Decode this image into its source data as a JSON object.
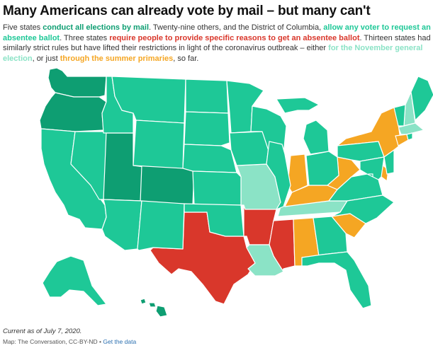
{
  "title": "Many Americans can already vote by mail – but many can't",
  "description": {
    "p1": "Five states ",
    "h1": "conduct all elections by mail",
    "p2": ". Twenty-nine others, and the District of Columbia, ",
    "h2": "allow any voter to request an absentee ballot",
    "p3": ". Three states ",
    "h3": "require people to provide specific reasons to get an absentee ballot",
    "p4": ". Thirteen states had similarly strict rules but have lifted their restrictions in light of the coronavirus outbreak – either ",
    "h4": "for the November general election",
    "p5": ", or just ",
    "h5": "through the summer primaries",
    "p6": ", so far."
  },
  "colors": {
    "all_mail": "#0e9e72",
    "any_voter": "#1ec897",
    "specific_reasons": "#d9372b",
    "lifted_november": "#8be3c6",
    "lifted_primaries": "#f5a623"
  },
  "states": [
    {
      "code": "WA",
      "category": "all_mail"
    },
    {
      "code": "OR",
      "category": "all_mail"
    },
    {
      "code": "UT",
      "category": "all_mail"
    },
    {
      "code": "CO",
      "category": "all_mail"
    },
    {
      "code": "HI",
      "category": "all_mail"
    },
    {
      "code": "TX",
      "category": "specific_reasons"
    },
    {
      "code": "AR",
      "category": "specific_reasons"
    },
    {
      "code": "MS",
      "category": "specific_reasons"
    },
    {
      "code": "MO",
      "category": "lifted_november"
    },
    {
      "code": "LA",
      "category": "lifted_november"
    },
    {
      "code": "TN",
      "category": "lifted_november"
    },
    {
      "code": "NH",
      "category": "lifted_november"
    },
    {
      "code": "MA",
      "category": "lifted_november"
    },
    {
      "code": "IN",
      "category": "lifted_primaries"
    },
    {
      "code": "KY",
      "category": "lifted_primaries"
    },
    {
      "code": "WV",
      "category": "lifted_primaries"
    },
    {
      "code": "AL",
      "category": "lifted_primaries"
    },
    {
      "code": "SC",
      "category": "lifted_primaries"
    },
    {
      "code": "NY",
      "category": "lifted_primaries"
    },
    {
      "code": "CT",
      "category": "lifted_primaries"
    },
    {
      "code": "DE",
      "category": "lifted_primaries"
    },
    {
      "code": "CA",
      "category": "any_voter"
    },
    {
      "code": "NV",
      "category": "any_voter"
    },
    {
      "code": "ID",
      "category": "any_voter"
    },
    {
      "code": "MT",
      "category": "any_voter"
    },
    {
      "code": "WY",
      "category": "any_voter"
    },
    {
      "code": "AZ",
      "category": "any_voter"
    },
    {
      "code": "NM",
      "category": "any_voter"
    },
    {
      "code": "ND",
      "category": "any_voter"
    },
    {
      "code": "SD",
      "category": "any_voter"
    },
    {
      "code": "NE",
      "category": "any_voter"
    },
    {
      "code": "KS",
      "category": "any_voter"
    },
    {
      "code": "OK",
      "category": "any_voter"
    },
    {
      "code": "MN",
      "category": "any_voter"
    },
    {
      "code": "IA",
      "category": "any_voter"
    },
    {
      "code": "WI",
      "category": "any_voter"
    },
    {
      "code": "IL",
      "category": "any_voter"
    },
    {
      "code": "MI",
      "category": "any_voter"
    },
    {
      "code": "OH",
      "category": "any_voter"
    },
    {
      "code": "PA",
      "category": "any_voter"
    },
    {
      "code": "NJ",
      "category": "any_voter"
    },
    {
      "code": "MD",
      "category": "any_voter"
    },
    {
      "code": "DC",
      "category": "any_voter"
    },
    {
      "code": "VA",
      "category": "any_voter"
    },
    {
      "code": "NC",
      "category": "any_voter"
    },
    {
      "code": "GA",
      "category": "any_voter"
    },
    {
      "code": "FL",
      "category": "any_voter"
    },
    {
      "code": "VT",
      "category": "any_voter"
    },
    {
      "code": "ME",
      "category": "any_voter"
    },
    {
      "code": "RI",
      "category": "any_voter"
    },
    {
      "code": "AK",
      "category": "any_voter"
    }
  ],
  "footnote": "Current as of July 7, 2020.",
  "source": {
    "text": "Map: The Conversation, CC-BY-ND • ",
    "link": "Get the data"
  }
}
